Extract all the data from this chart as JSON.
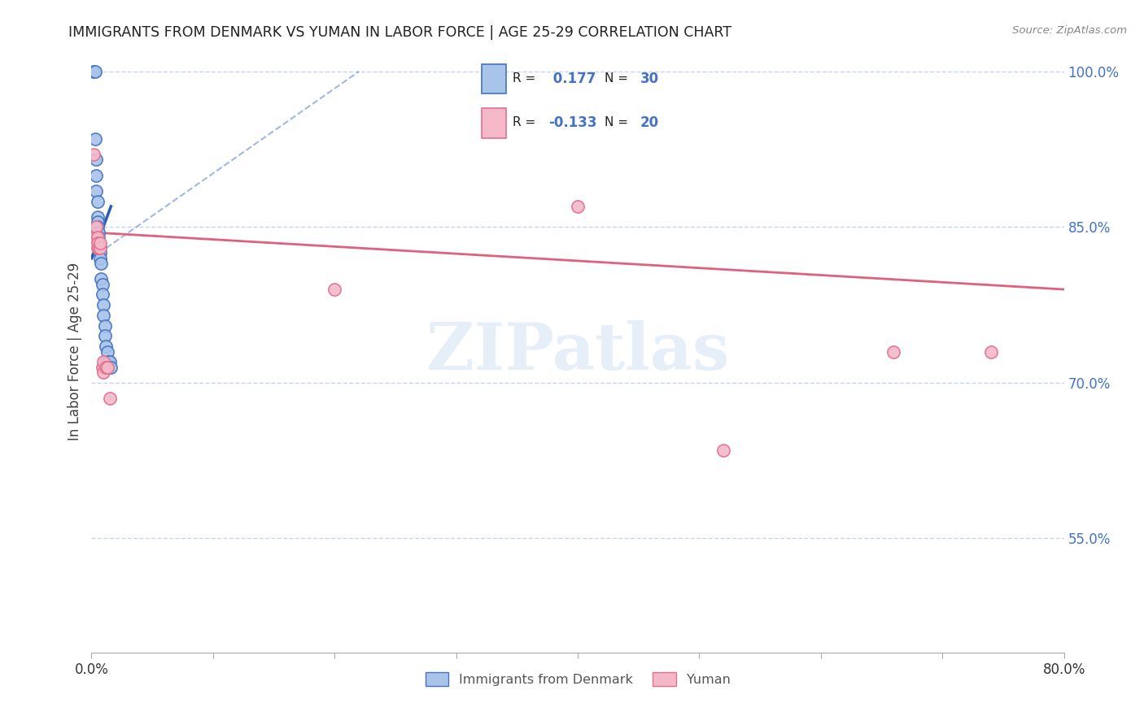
{
  "title": "IMMIGRANTS FROM DENMARK VS YUMAN IN LABOR FORCE | AGE 25-29 CORRELATION CHART",
  "source": "Source: ZipAtlas.com",
  "ylabel": "In Labor Force | Age 25-29",
  "x_min": 0.0,
  "x_max": 0.8,
  "y_min": 0.44,
  "y_max": 1.02,
  "y_ticks": [
    0.55,
    0.7,
    0.85,
    1.0
  ],
  "y_tick_labels": [
    "55.0%",
    "70.0%",
    "85.0%",
    "100.0%"
  ],
  "legend_labels": [
    "Immigrants from Denmark",
    "Yuman"
  ],
  "denmark_R": 0.177,
  "denmark_N": 30,
  "yuman_R": -0.133,
  "yuman_N": 20,
  "color_denmark_fill": "#a8c4e8",
  "color_denmark_edge": "#4472c4",
  "color_denmark_line": "#2a5caa",
  "color_yuman_fill": "#f4b8c8",
  "color_yuman_edge": "#e07090",
  "color_yuman_line": "#e06080",
  "color_grid": "#c8d4e8",
  "color_axis_right": "#4472c4",
  "color_title": "#222222",
  "color_source": "#888888",
  "denmark_scatter_x": [
    0.002,
    0.003,
    0.003,
    0.004,
    0.004,
    0.004,
    0.005,
    0.005,
    0.005,
    0.005,
    0.006,
    0.006,
    0.006,
    0.007,
    0.007,
    0.007,
    0.008,
    0.008,
    0.009,
    0.009,
    0.01,
    0.01,
    0.011,
    0.011,
    0.012,
    0.012,
    0.013,
    0.014,
    0.015,
    0.016
  ],
  "denmark_scatter_y": [
    1.0,
    1.0,
    0.935,
    0.915,
    0.9,
    0.885,
    0.875,
    0.86,
    0.855,
    0.85,
    0.845,
    0.84,
    0.835,
    0.83,
    0.825,
    0.82,
    0.815,
    0.8,
    0.795,
    0.785,
    0.775,
    0.765,
    0.755,
    0.745,
    0.735,
    0.72,
    0.73,
    0.72,
    0.72,
    0.715
  ],
  "yuman_scatter_x": [
    0.002,
    0.003,
    0.004,
    0.005,
    0.005,
    0.005,
    0.006,
    0.007,
    0.007,
    0.009,
    0.01,
    0.01,
    0.012,
    0.013,
    0.015,
    0.2,
    0.4,
    0.52,
    0.66,
    0.74
  ],
  "yuman_scatter_y": [
    0.92,
    0.84,
    0.85,
    0.84,
    0.83,
    0.835,
    0.83,
    0.83,
    0.835,
    0.715,
    0.72,
    0.71,
    0.715,
    0.715,
    0.685,
    0.79,
    0.87,
    0.635,
    0.73,
    0.73
  ],
  "dk_line_x0": 0.0,
  "dk_line_y0": 0.82,
  "dk_line_x1": 0.016,
  "dk_line_y1": 0.87,
  "yu_line_x0": 0.0,
  "yu_line_y0": 0.845,
  "yu_line_x1": 0.8,
  "yu_line_y1": 0.79,
  "dash_line_x0": 0.0,
  "dash_line_y0": 0.82,
  "dash_line_x1": 0.22,
  "dash_line_y1": 1.0,
  "watermark_text": "ZIPatlas",
  "marker_size": 120
}
